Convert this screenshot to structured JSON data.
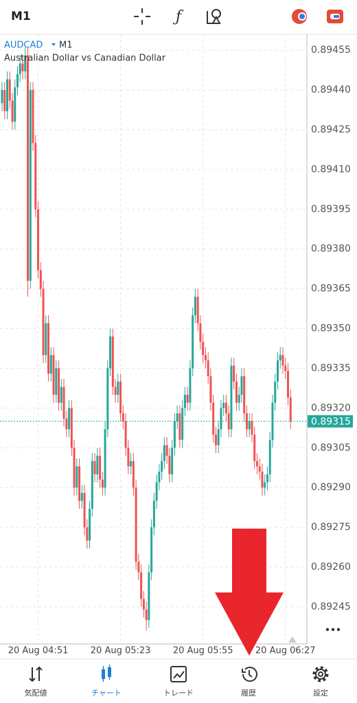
{
  "header": {
    "timeframe": "M1"
  },
  "chart_data": {
    "type": "candlestick",
    "symbol": "AUDCAD",
    "timeframe": "M1",
    "subtitle": "Australian Dollar vs Canadian Dollar",
    "up_color": "#26a69a",
    "down_color": "#ef5350",
    "grid": true,
    "ylim": [
      0.89231,
      0.89461
    ],
    "yticks": [
      0.89455,
      {
        "value": 0.8944,
        "label": "0.89440"
      },
      0.89425,
      {
        "value": 0.8941,
        "label": "0.89410"
      },
      0.89395,
      {
        "value": 0.8938,
        "label": "0.89380"
      },
      0.89365,
      {
        "value": 0.8935,
        "label": "0.89350"
      },
      0.89335,
      {
        "value": 0.8932,
        "label": "0.89320"
      },
      0.89305,
      {
        "value": 0.8929,
        "label": "0.89290"
      },
      0.89275,
      {
        "value": 0.8926,
        "label": "0.89260"
      },
      0.89245
    ],
    "xlim": [
      -0.8,
      113.8
    ],
    "xticks": [
      {
        "value": 14,
        "label": "20 Aug 04:51"
      },
      {
        "value": 46,
        "label": "20 Aug 05:23"
      },
      {
        "value": 78,
        "label": "20 Aug 05:55"
      },
      {
        "value": 110,
        "label": "20 Aug 06:27"
      }
    ],
    "current_price": 0.89315,
    "open": [
      0.89435,
      0.8944,
      0.89432,
      0.89444,
      0.89436,
      0.89428,
      0.89441,
      0.89446,
      0.8945,
      0.89447,
      0.89453,
      0.89368,
      0.8944,
      0.8942,
      0.89395,
      0.89372,
      0.89365,
      0.8934,
      0.89352,
      0.89333,
      0.8934,
      0.89325,
      0.89335,
      0.89322,
      0.89328,
      0.89316,
      0.89312,
      0.8932,
      0.89305,
      0.8929,
      0.89298,
      0.89285,
      0.89288,
      0.89275,
      0.8927,
      0.89282,
      0.893,
      0.89295,
      0.89302,
      0.89293,
      0.8929,
      0.89312,
      0.89335,
      0.89347,
      0.89328,
      0.89325,
      0.8933,
      0.89318,
      0.89315,
      0.89305,
      0.89298,
      0.893,
      0.8929,
      0.89262,
      0.89258,
      0.89248,
      0.89244,
      0.8924,
      0.89258,
      0.89275,
      0.89285,
      0.89292,
      0.89296,
      0.893,
      0.89306,
      0.89302,
      0.89295,
      0.89305,
      0.89315,
      0.89318,
      0.89308,
      0.8932,
      0.89325,
      0.89322,
      0.89335,
      0.89355,
      0.89362,
      0.89352,
      0.89345,
      0.8934,
      0.89338,
      0.89332,
      0.89322,
      0.8931,
      0.89306,
      0.89312,
      0.8932,
      0.89322,
      0.89318,
      0.89312,
      0.89336,
      0.8933,
      0.89322,
      0.89325,
      0.89332,
      0.89318,
      0.89312,
      0.89315,
      0.8931,
      0.893,
      0.89298,
      0.89296,
      0.8929,
      0.89292,
      0.89295,
      0.89308,
      0.89322,
      0.8933,
      0.89338,
      0.8934,
      0.89336,
      0.89334,
      0.89324
    ],
    "high": [
      0.89443,
      0.89443,
      0.89447,
      0.89447,
      0.89439,
      0.89444,
      0.89449,
      0.89453,
      0.89453,
      0.89456,
      0.89456,
      0.89443,
      0.89443,
      0.89423,
      0.89398,
      0.89375,
      0.89368,
      0.89355,
      0.89355,
      0.89343,
      0.89343,
      0.89338,
      0.89338,
      0.89331,
      0.89331,
      0.89319,
      0.89323,
      0.89323,
      0.89308,
      0.89301,
      0.89301,
      0.89291,
      0.89291,
      0.89278,
      0.89285,
      0.89303,
      0.89303,
      0.89305,
      0.89305,
      0.89296,
      0.89315,
      0.89338,
      0.8935,
      0.8935,
      0.89331,
      0.89333,
      0.89333,
      0.89321,
      0.89318,
      0.89308,
      0.89303,
      0.89303,
      0.89293,
      0.89265,
      0.89261,
      0.89251,
      0.89247,
      0.89261,
      0.89278,
      0.89288,
      0.89295,
      0.89299,
      0.89303,
      0.89309,
      0.89309,
      0.89305,
      0.89308,
      0.89318,
      0.89321,
      0.89321,
      0.89323,
      0.89328,
      0.89328,
      0.89338,
      0.89358,
      0.89365,
      0.89365,
      0.89355,
      0.89348,
      0.89343,
      0.89341,
      0.89335,
      0.89325,
      0.89313,
      0.89315,
      0.89323,
      0.89325,
      0.89325,
      0.89321,
      0.89339,
      0.89339,
      0.89333,
      0.89328,
      0.89335,
      0.89335,
      0.89321,
      0.89318,
      0.89318,
      0.89313,
      0.89303,
      0.89301,
      0.89299,
      0.89295,
      0.89298,
      0.89311,
      0.89325,
      0.89333,
      0.89341,
      0.89343,
      0.89343,
      0.89339,
      0.89337,
      0.89327
    ],
    "low": [
      0.89432,
      0.89429,
      0.89429,
      0.89433,
      0.89425,
      0.89425,
      0.89438,
      0.89443,
      0.89444,
      0.89444,
      0.89362,
      0.89365,
      0.89417,
      0.89392,
      0.89369,
      0.89362,
      0.89337,
      0.89337,
      0.8933,
      0.8933,
      0.89322,
      0.89322,
      0.89319,
      0.89319,
      0.89313,
      0.89309,
      0.89309,
      0.89302,
      0.89287,
      0.89287,
      0.89282,
      0.89282,
      0.89272,
      0.89267,
      0.89267,
      0.89279,
      0.89292,
      0.89292,
      0.8929,
      0.89287,
      0.89287,
      0.89309,
      0.89332,
      0.89325,
      0.89322,
      0.89322,
      0.89315,
      0.89312,
      0.89302,
      0.89295,
      0.89295,
      0.89287,
      0.89259,
      0.89255,
      0.89245,
      0.89241,
      0.89236,
      0.89237,
      0.89255,
      0.89272,
      0.89282,
      0.89289,
      0.89293,
      0.89297,
      0.89299,
      0.89292,
      0.89292,
      0.89302,
      0.89312,
      0.89305,
      0.89305,
      0.89317,
      0.89319,
      0.89319,
      0.89332,
      0.89352,
      0.89349,
      0.89342,
      0.89337,
      0.89335,
      0.89329,
      0.89319,
      0.89307,
      0.89303,
      0.89303,
      0.89309,
      0.89317,
      0.89315,
      0.89309,
      0.89309,
      0.89327,
      0.89319,
      0.89319,
      0.89322,
      0.89315,
      0.89309,
      0.89309,
      0.89307,
      0.89297,
      0.89295,
      0.89293,
      0.89287,
      0.89287,
      0.89289,
      0.89292,
      0.89305,
      0.89319,
      0.89327,
      0.89335,
      0.89333,
      0.89331,
      0.89321,
      0.89312
    ],
    "close": [
      0.8944,
      0.89432,
      0.89444,
      0.89436,
      0.89428,
      0.89441,
      0.89446,
      0.8945,
      0.89447,
      0.89453,
      0.89368,
      0.8944,
      0.8942,
      0.89395,
      0.89372,
      0.89365,
      0.8934,
      0.89352,
      0.89333,
      0.8934,
      0.89325,
      0.89335,
      0.89322,
      0.89328,
      0.89316,
      0.89312,
      0.8932,
      0.89305,
      0.8929,
      0.89298,
      0.89285,
      0.89288,
      0.89275,
      0.8927,
      0.89282,
      0.893,
      0.89295,
      0.89302,
      0.89293,
      0.8929,
      0.89312,
      0.89335,
      0.89347,
      0.89328,
      0.89325,
      0.8933,
      0.89318,
      0.89315,
      0.89305,
      0.89298,
      0.893,
      0.8929,
      0.89262,
      0.89258,
      0.89248,
      0.89244,
      0.8924,
      0.89258,
      0.89275,
      0.89285,
      0.89292,
      0.89296,
      0.893,
      0.89306,
      0.89302,
      0.89295,
      0.89305,
      0.89315,
      0.89318,
      0.89308,
      0.8932,
      0.89325,
      0.89322,
      0.89335,
      0.89355,
      0.89362,
      0.89352,
      0.89345,
      0.8934,
      0.89338,
      0.89332,
      0.89322,
      0.8931,
      0.89306,
      0.89312,
      0.8932,
      0.89322,
      0.89318,
      0.89312,
      0.89336,
      0.8933,
      0.89322,
      0.89325,
      0.89332,
      0.89318,
      0.89312,
      0.89315,
      0.8931,
      0.893,
      0.89298,
      0.89296,
      0.8929,
      0.89292,
      0.89295,
      0.89308,
      0.89322,
      0.8933,
      0.89338,
      0.8934,
      0.89336,
      0.89334,
      0.89324,
      0.89315
    ]
  },
  "tabs": [
    "気配値",
    "チャート",
    "トレード",
    "履歴",
    "設定"
  ],
  "active_tab": 1
}
